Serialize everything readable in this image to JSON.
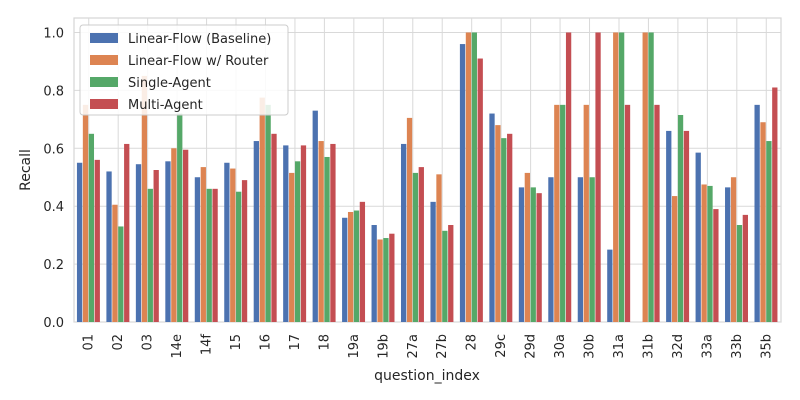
{
  "chart_data": {
    "type": "bar",
    "xlabel": "question_index",
    "ylabel": "Recall",
    "ylim": [
      0,
      1.05
    ],
    "yticks": [
      0.0,
      0.2,
      0.4,
      0.6,
      0.8,
      1.0
    ],
    "ytick_labels": [
      "0.0",
      "0.2",
      "0.4",
      "0.6",
      "0.8",
      "1.0"
    ],
    "grid": true,
    "legend_position": "top-left",
    "categories": [
      "01",
      "02",
      "03",
      "14e",
      "14f",
      "15",
      "16",
      "17",
      "18",
      "19a",
      "19b",
      "27a",
      "27b",
      "28",
      "29c",
      "29d",
      "30a",
      "30b",
      "31a",
      "31b",
      "32d",
      "33a",
      "33b",
      "35b"
    ],
    "series": [
      {
        "name": "Linear-Flow (Baseline)",
        "color": "#4c72b0",
        "values": [
          0.55,
          0.52,
          0.545,
          0.555,
          0.5,
          0.55,
          0.625,
          0.61,
          0.73,
          0.36,
          0.335,
          0.615,
          0.415,
          0.96,
          0.72,
          0.465,
          0.5,
          0.5,
          0.25,
          0.0,
          0.66,
          0.585,
          0.465,
          0.75
        ]
      },
      {
        "name": "Linear-Flow w/ Router",
        "color": "#dd8452",
        "values": [
          0.75,
          0.405,
          0.85,
          0.6,
          0.535,
          0.53,
          0.775,
          0.515,
          0.625,
          0.38,
          0.285,
          0.705,
          0.51,
          1.0,
          0.68,
          0.515,
          0.75,
          0.75,
          1.0,
          1.0,
          0.435,
          0.475,
          0.5,
          0.69
        ]
      },
      {
        "name": "Single-Agent",
        "color": "#55a868",
        "values": [
          0.65,
          0.33,
          0.46,
          0.72,
          0.46,
          0.45,
          0.75,
          0.555,
          0.57,
          0.385,
          0.29,
          0.515,
          0.315,
          1.0,
          0.635,
          0.465,
          0.75,
          0.5,
          1.0,
          1.0,
          0.715,
          0.47,
          0.335,
          0.625
        ]
      },
      {
        "name": "Multi-Agent",
        "color": "#c44e52",
        "values": [
          0.56,
          0.615,
          0.525,
          0.595,
          0.46,
          0.49,
          0.65,
          0.61,
          0.615,
          0.415,
          0.305,
          0.535,
          0.335,
          0.91,
          0.65,
          0.445,
          1.0,
          1.0,
          0.75,
          0.75,
          0.66,
          0.39,
          0.37,
          0.81
        ]
      }
    ]
  }
}
